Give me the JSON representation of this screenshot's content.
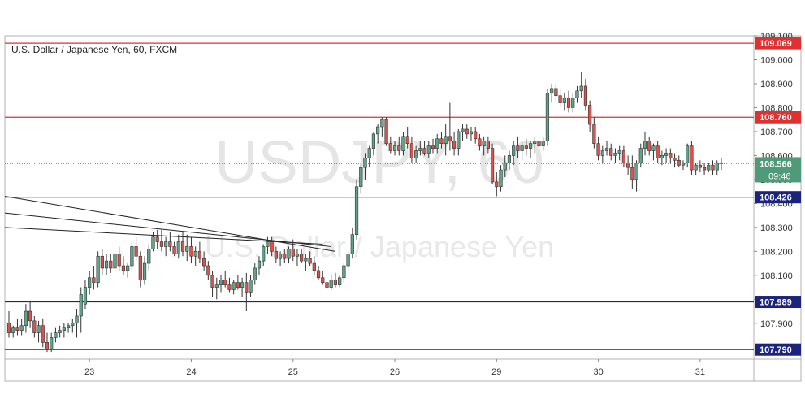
{
  "chart_data": {
    "type": "candlestick",
    "title": "U.S. Dollar / Japanese Yen, 60, FXCM",
    "watermark_symbol": "USDJPY, 60",
    "watermark_name": "U.S. Dollar / Japanese Yen",
    "ylim": [
      107.75,
      109.1
    ],
    "y_ticks": [
      107.9,
      108.0,
      108.1,
      108.2,
      108.3,
      108.4,
      108.5,
      108.6,
      108.7,
      108.8,
      108.9,
      109.0,
      109.1
    ],
    "x_ticks": [
      {
        "label": "23",
        "bar": 19
      },
      {
        "label": "24",
        "bar": 43
      },
      {
        "label": "25",
        "bar": 67
      },
      {
        "label": "26",
        "bar": 91
      },
      {
        "label": "29",
        "bar": 115
      },
      {
        "label": "30",
        "bar": 139
      },
      {
        "label": "31",
        "bar": 163
      }
    ],
    "levels": [
      {
        "value": 109.069,
        "label": "109.069",
        "color": "#e03030"
      },
      {
        "value": 108.76,
        "label": "108.760",
        "color": "#e03030"
      },
      {
        "value": 108.426,
        "label": "108.426",
        "color": "#1a237e"
      },
      {
        "value": 107.989,
        "label": "107.989",
        "color": "#1a237e"
      },
      {
        "value": 107.79,
        "label": "107.790",
        "color": "#1a237e"
      }
    ],
    "current": {
      "value": 108.566,
      "label": "108.566",
      "countdown": "09:46",
      "color": "#4f9a78"
    },
    "colors": {
      "up": "#5fa489",
      "down": "#d9534f",
      "wick": "#333333"
    },
    "trendlines": [
      {
        "x1": -1.5,
        "y1": 108.43,
        "x2": 77,
        "y2": 108.2
      },
      {
        "x1": -1.5,
        "y1": 108.36,
        "x2": 76,
        "y2": 108.22
      },
      {
        "x1": -1.5,
        "y1": 108.3,
        "x2": 74,
        "y2": 108.23
      }
    ],
    "candles": [
      [
        107.9,
        107.95,
        107.84,
        107.86
      ],
      [
        107.86,
        107.89,
        107.84,
        107.88
      ],
      [
        107.88,
        107.92,
        107.85,
        107.87
      ],
      [
        107.87,
        107.92,
        107.85,
        107.89
      ],
      [
        107.89,
        107.98,
        107.86,
        107.95
      ],
      [
        107.95,
        107.99,
        107.88,
        107.91
      ],
      [
        107.91,
        107.93,
        107.84,
        107.86
      ],
      [
        107.86,
        107.91,
        107.82,
        107.89
      ],
      [
        107.89,
        107.92,
        107.8,
        107.82
      ],
      [
        107.82,
        107.86,
        107.78,
        107.79
      ],
      [
        107.79,
        107.86,
        107.78,
        107.84
      ],
      [
        107.84,
        107.88,
        107.82,
        107.86
      ],
      [
        107.86,
        107.89,
        107.84,
        107.87
      ],
      [
        107.87,
        107.9,
        107.84,
        107.88
      ],
      [
        107.88,
        107.9,
        107.86,
        107.89
      ],
      [
        107.89,
        107.92,
        107.86,
        107.9
      ],
      [
        107.9,
        107.96,
        107.84,
        107.93
      ],
      [
        107.93,
        108.05,
        107.86,
        108.02
      ],
      [
        107.98,
        108.08,
        107.96,
        108.05
      ],
      [
        108.05,
        108.12,
        108.02,
        108.09
      ],
      [
        108.09,
        108.14,
        108.04,
        108.07
      ],
      [
        108.07,
        108.2,
        108.05,
        108.18
      ],
      [
        108.18,
        108.21,
        108.1,
        108.13
      ],
      [
        108.13,
        108.19,
        108.1,
        108.16
      ],
      [
        108.16,
        108.19,
        108.11,
        108.13
      ],
      [
        108.13,
        108.21,
        108.1,
        108.19
      ],
      [
        108.19,
        108.22,
        108.12,
        108.14
      ],
      [
        108.14,
        108.18,
        108.1,
        108.12
      ],
      [
        108.12,
        108.15,
        108.09,
        108.14
      ],
      [
        108.14,
        108.24,
        108.12,
        108.22
      ],
      [
        108.22,
        108.26,
        108.16,
        108.18
      ],
      [
        108.18,
        108.2,
        108.05,
        108.08
      ],
      [
        108.08,
        108.18,
        108.06,
        108.15
      ],
      [
        108.15,
        108.23,
        108.12,
        108.21
      ],
      [
        108.21,
        108.28,
        108.2,
        108.26
      ],
      [
        108.26,
        108.29,
        108.21,
        108.24
      ],
      [
        108.24,
        108.29,
        108.2,
        108.22
      ],
      [
        108.22,
        108.26,
        108.18,
        108.24
      ],
      [
        108.24,
        108.28,
        108.2,
        108.22
      ],
      [
        108.22,
        108.24,
        108.18,
        108.19
      ],
      [
        108.19,
        108.27,
        108.17,
        108.24
      ],
      [
        108.24,
        108.28,
        108.18,
        108.2
      ],
      [
        108.2,
        108.27,
        108.16,
        108.22
      ],
      [
        108.22,
        108.26,
        108.15,
        108.18
      ],
      [
        108.18,
        108.22,
        108.14,
        108.2
      ],
      [
        108.2,
        108.24,
        108.15,
        108.17
      ],
      [
        108.17,
        108.2,
        108.12,
        108.14
      ],
      [
        108.14,
        108.16,
        108.08,
        108.1
      ],
      [
        108.1,
        108.12,
        108.01,
        108.05
      ],
      [
        108.05,
        108.09,
        108.0,
        108.06
      ],
      [
        108.06,
        108.1,
        108.03,
        108.08
      ],
      [
        108.08,
        108.12,
        108.05,
        108.06
      ],
      [
        108.06,
        108.09,
        108.03,
        108.04
      ],
      [
        108.04,
        108.08,
        108.02,
        108.07
      ],
      [
        108.07,
        108.1,
        108.04,
        108.05
      ],
      [
        108.05,
        108.09,
        108.01,
        108.07
      ],
      [
        108.07,
        108.11,
        107.95,
        108.03
      ],
      [
        108.03,
        108.1,
        108.01,
        108.08
      ],
      [
        108.08,
        108.15,
        108.06,
        108.13
      ],
      [
        108.13,
        108.18,
        108.1,
        108.16
      ],
      [
        108.16,
        108.23,
        108.14,
        108.22
      ],
      [
        108.22,
        108.26,
        108.19,
        108.24
      ],
      [
        108.24,
        108.26,
        108.18,
        108.2
      ],
      [
        108.2,
        108.22,
        108.15,
        108.17
      ],
      [
        108.17,
        108.2,
        108.14,
        108.19
      ],
      [
        108.19,
        108.21,
        108.15,
        108.17
      ],
      [
        108.17,
        108.22,
        108.15,
        108.21
      ],
      [
        108.21,
        108.25,
        108.16,
        108.18
      ],
      [
        108.18,
        108.21,
        108.14,
        108.19
      ],
      [
        108.19,
        108.21,
        108.15,
        108.16
      ],
      [
        108.16,
        108.19,
        108.12,
        108.17
      ],
      [
        108.17,
        108.2,
        108.14,
        108.15
      ],
      [
        108.15,
        108.18,
        108.1,
        108.12
      ],
      [
        108.12,
        108.14,
        108.08,
        108.09
      ],
      [
        108.09,
        108.12,
        108.06,
        108.07
      ],
      [
        108.07,
        108.09,
        108.04,
        108.05
      ],
      [
        108.05,
        108.1,
        108.04,
        108.08
      ],
      [
        108.08,
        108.11,
        108.05,
        108.06
      ],
      [
        108.06,
        108.1,
        108.05,
        108.09
      ],
      [
        108.09,
        108.15,
        108.07,
        108.14
      ],
      [
        108.14,
        108.2,
        108.12,
        108.19
      ],
      [
        108.19,
        108.3,
        108.17,
        108.27
      ],
      [
        108.27,
        108.5,
        108.25,
        108.47
      ],
      [
        108.47,
        108.57,
        108.44,
        108.55
      ],
      [
        108.55,
        108.61,
        108.5,
        108.59
      ],
      [
        108.59,
        108.64,
        108.55,
        108.63
      ],
      [
        108.63,
        108.7,
        108.6,
        108.69
      ],
      [
        108.69,
        108.73,
        108.65,
        108.72
      ],
      [
        108.72,
        108.76,
        108.68,
        108.75
      ],
      [
        108.75,
        108.76,
        108.64,
        108.65
      ],
      [
        108.65,
        108.68,
        108.61,
        108.62
      ],
      [
        108.62,
        108.66,
        108.6,
        108.64
      ],
      [
        108.64,
        108.68,
        108.6,
        108.62
      ],
      [
        108.62,
        108.7,
        108.6,
        108.68
      ],
      [
        108.68,
        108.72,
        108.63,
        108.65
      ],
      [
        108.65,
        108.68,
        108.57,
        108.59
      ],
      [
        108.59,
        108.64,
        108.57,
        108.62
      ],
      [
        108.62,
        108.66,
        108.6,
        108.63
      ],
      [
        108.63,
        108.66,
        108.6,
        108.61
      ],
      [
        108.61,
        108.66,
        108.59,
        108.64
      ],
      [
        108.64,
        108.67,
        108.61,
        108.63
      ],
      [
        108.63,
        108.69,
        108.61,
        108.67
      ],
      [
        108.67,
        108.7,
        108.63,
        108.65
      ],
      [
        108.65,
        108.73,
        108.6,
        108.68
      ],
      [
        108.68,
        108.82,
        108.62,
        108.66
      ],
      [
        108.66,
        108.7,
        108.6,
        108.63
      ],
      [
        108.63,
        108.71,
        108.6,
        108.7
      ],
      [
        108.7,
        108.73,
        108.66,
        108.71
      ],
      [
        108.71,
        108.73,
        108.67,
        108.69
      ],
      [
        108.69,
        108.72,
        108.66,
        108.7
      ],
      [
        108.7,
        108.72,
        108.65,
        108.67
      ],
      [
        108.67,
        108.69,
        108.62,
        108.64
      ],
      [
        108.64,
        108.68,
        108.6,
        108.66
      ],
      [
        108.66,
        108.68,
        108.61,
        108.63
      ],
      [
        108.63,
        108.65,
        108.48,
        108.49
      ],
      [
        108.49,
        108.53,
        108.43,
        108.47
      ],
      [
        108.47,
        108.56,
        108.45,
        108.54
      ],
      [
        108.54,
        108.6,
        108.51,
        108.57
      ],
      [
        108.57,
        108.62,
        108.54,
        108.6
      ],
      [
        108.6,
        108.66,
        108.56,
        108.64
      ],
      [
        108.64,
        108.68,
        108.59,
        108.62
      ],
      [
        108.62,
        108.66,
        108.58,
        108.64
      ],
      [
        108.64,
        108.67,
        108.6,
        108.63
      ],
      [
        108.63,
        108.66,
        108.59,
        108.65
      ],
      [
        108.65,
        108.68,
        108.61,
        108.66
      ],
      [
        108.66,
        108.7,
        108.62,
        108.64
      ],
      [
        108.64,
        108.68,
        108.62,
        108.66
      ],
      [
        108.66,
        108.88,
        108.64,
        108.86
      ],
      [
        108.86,
        108.9,
        108.82,
        108.88
      ],
      [
        108.88,
        108.9,
        108.83,
        108.85
      ],
      [
        108.85,
        108.88,
        108.8,
        108.82
      ],
      [
        108.82,
        108.86,
        108.79,
        108.84
      ],
      [
        108.84,
        108.87,
        108.78,
        108.8
      ],
      [
        108.8,
        108.86,
        108.78,
        108.84
      ],
      [
        108.84,
        108.89,
        108.82,
        108.87
      ],
      [
        108.87,
        108.95,
        108.84,
        108.89
      ],
      [
        108.89,
        108.92,
        108.79,
        108.81
      ],
      [
        108.81,
        108.83,
        108.7,
        108.73
      ],
      [
        108.73,
        108.76,
        108.63,
        108.65
      ],
      [
        108.65,
        108.68,
        108.58,
        108.6
      ],
      [
        108.6,
        108.64,
        108.57,
        108.62
      ],
      [
        108.62,
        108.66,
        108.6,
        108.63
      ],
      [
        108.63,
        108.65,
        108.58,
        108.6
      ],
      [
        108.6,
        108.63,
        108.57,
        108.61
      ],
      [
        108.61,
        108.64,
        108.58,
        108.62
      ],
      [
        108.62,
        108.64,
        108.55,
        108.57
      ],
      [
        108.57,
        108.6,
        108.52,
        108.55
      ],
      [
        108.55,
        108.6,
        108.46,
        108.5
      ],
      [
        108.5,
        108.58,
        108.45,
        108.57
      ],
      [
        108.57,
        108.65,
        108.55,
        108.63
      ],
      [
        108.63,
        108.7,
        108.6,
        108.66
      ],
      [
        108.66,
        108.68,
        108.6,
        108.62
      ],
      [
        108.62,
        108.65,
        108.58,
        108.64
      ],
      [
        108.64,
        108.66,
        108.57,
        108.59
      ],
      [
        108.59,
        108.62,
        108.56,
        108.6
      ],
      [
        108.6,
        108.63,
        108.57,
        108.61
      ],
      [
        108.61,
        108.63,
        108.57,
        108.59
      ],
      [
        108.59,
        108.61,
        108.55,
        108.58
      ],
      [
        108.58,
        108.6,
        108.55,
        108.56
      ],
      [
        108.56,
        108.58,
        108.54,
        108.57
      ],
      [
        108.57,
        108.65,
        108.55,
        108.64
      ],
      [
        108.64,
        108.66,
        108.52,
        108.54
      ],
      [
        108.54,
        108.57,
        108.52,
        108.56
      ],
      [
        108.56,
        108.58,
        108.53,
        108.55
      ],
      [
        108.55,
        108.57,
        108.52,
        108.54
      ],
      [
        108.54,
        108.57,
        108.53,
        108.56
      ],
      [
        108.56,
        108.58,
        108.52,
        108.54
      ],
      [
        108.54,
        108.58,
        108.52,
        108.57
      ],
      [
        108.57,
        108.59,
        108.54,
        108.566
      ]
    ]
  }
}
